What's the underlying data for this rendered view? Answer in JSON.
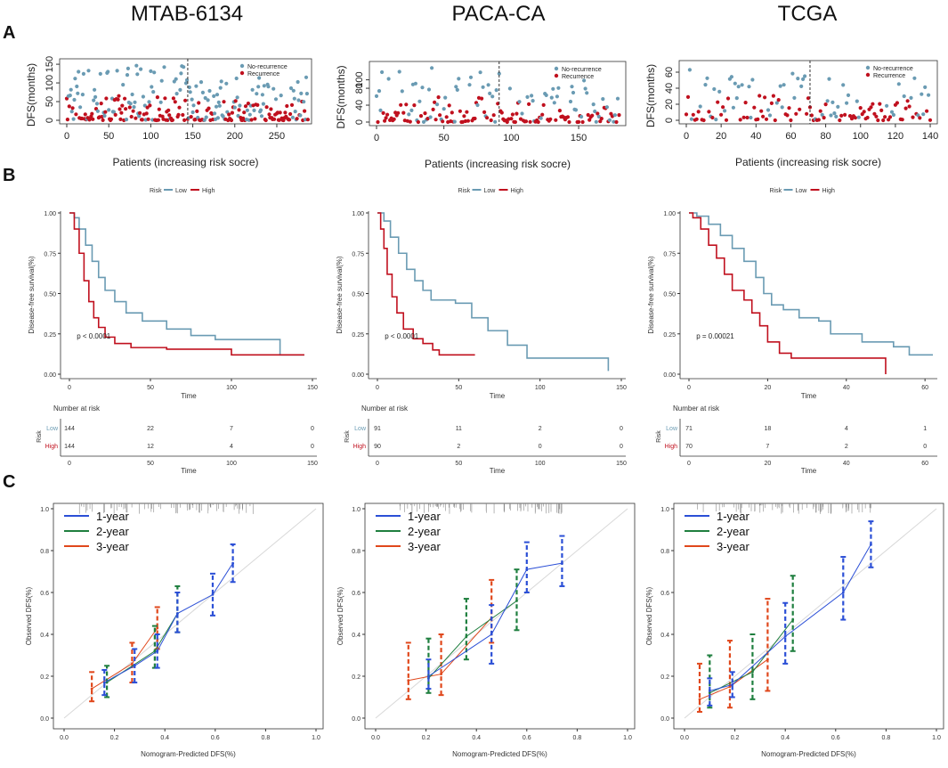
{
  "columns": [
    "MTAB-6134",
    "PACA-CA",
    "TCGA"
  ],
  "row_labels": [
    "A",
    "B",
    "C"
  ],
  "colors": {
    "low": "#6a9bb3",
    "high": "#c0101e",
    "y1": "#2b4fd6",
    "y2": "#1f7f3f",
    "y3": "#e0481c",
    "ideal": "#d8d8d8"
  },
  "chart_data": {
    "scatter": {
      "type": "scatter",
      "xlabel": "Patients (increasing risk socre)",
      "ylabel": "DFS(months)",
      "legend": [
        "No-recurrence",
        "Recurrence"
      ],
      "panels": [
        {
          "dataset": "MTAB-6134",
          "xlim": [
            0,
            285
          ],
          "ylim": [
            0,
            155
          ],
          "xticks": [
            0,
            50,
            100,
            150,
            200,
            250
          ],
          "yticks": [
            0,
            50,
            100,
            150
          ],
          "cutoff": 144,
          "n": 288
        },
        {
          "dataset": "PACA-CA",
          "xlim": [
            0,
            181
          ],
          "ylim": [
            0,
            135
          ],
          "xticks": [
            0,
            50,
            100,
            150
          ],
          "yticks": [
            0,
            40,
            80,
            100
          ],
          "cutoff": 91,
          "n": 181
        },
        {
          "dataset": "TCGA",
          "xlim": [
            0,
            141
          ],
          "ylim": [
            0,
            70
          ],
          "xticks": [
            0,
            20,
            40,
            60,
            80,
            100,
            120,
            140
          ],
          "yticks": [
            0,
            20,
            40,
            60
          ],
          "cutoff": 71,
          "n": 141
        }
      ]
    },
    "km": {
      "type": "line",
      "xlabel": "Time",
      "ylabel": "Disease-free survival(%)",
      "legend_title": "Risk",
      "legend": [
        "Low",
        "High"
      ],
      "yticks": [
        "0.00",
        "0.25",
        "0.50",
        "0.75",
        "1.00"
      ],
      "risk_table_title": "Number at risk",
      "risk_label": "Risk",
      "panels": [
        {
          "dataset": "MTAB-6134",
          "pvalue": "p < 0.0001",
          "xlim": [
            0,
            150
          ],
          "xticks": [
            0,
            50,
            100,
            150
          ],
          "low": [
            [
              0,
              1
            ],
            [
              3,
              0.97
            ],
            [
              6,
              0.9
            ],
            [
              10,
              0.8
            ],
            [
              14,
              0.7
            ],
            [
              18,
              0.6
            ],
            [
              22,
              0.52
            ],
            [
              28,
              0.45
            ],
            [
              35,
              0.38
            ],
            [
              45,
              0.33
            ],
            [
              60,
              0.28
            ],
            [
              75,
              0.24
            ],
            [
              90,
              0.215
            ],
            [
              130,
              0.215
            ],
            [
              130,
              0.12
            ],
            [
              145,
              0.12
            ]
          ],
          "high": [
            [
              0,
              1
            ],
            [
              3,
              0.9
            ],
            [
              6,
              0.75
            ],
            [
              9,
              0.58
            ],
            [
              12,
              0.45
            ],
            [
              15,
              0.35
            ],
            [
              18,
              0.29
            ],
            [
              22,
              0.23
            ],
            [
              28,
              0.19
            ],
            [
              38,
              0.165
            ],
            [
              60,
              0.155
            ],
            [
              100,
              0.12
            ],
            [
              145,
              0.12
            ]
          ],
          "risk_low": [
            "144",
            "22",
            "7",
            "0"
          ],
          "risk_high": [
            "144",
            "12",
            "4",
            "0"
          ]
        },
        {
          "dataset": "PACA-CA",
          "pvalue": "p < 0.0001",
          "xlim": [
            0,
            150
          ],
          "xticks": [
            0,
            50,
            100,
            150
          ],
          "low": [
            [
              0,
              1
            ],
            [
              4,
              0.95
            ],
            [
              8,
              0.85
            ],
            [
              13,
              0.75
            ],
            [
              18,
              0.65
            ],
            [
              23,
              0.58
            ],
            [
              28,
              0.52
            ],
            [
              33,
              0.46
            ],
            [
              48,
              0.44
            ],
            [
              58,
              0.35
            ],
            [
              68,
              0.27
            ],
            [
              80,
              0.18
            ],
            [
              92,
              0.1
            ],
            [
              138,
              0.1
            ],
            [
              142,
              0.02
            ]
          ],
          "high": [
            [
              0,
              1
            ],
            [
              2,
              0.9
            ],
            [
              4,
              0.78
            ],
            [
              6,
              0.62
            ],
            [
              9,
              0.48
            ],
            [
              12,
              0.38
            ],
            [
              16,
              0.28
            ],
            [
              22,
              0.22
            ],
            [
              28,
              0.19
            ],
            [
              34,
              0.15
            ],
            [
              38,
              0.12
            ],
            [
              60,
              0.12
            ]
          ],
          "risk_low": [
            "91",
            "11",
            "2",
            "0"
          ],
          "risk_high": [
            "90",
            "2",
            "0",
            "0"
          ]
        },
        {
          "dataset": "TCGA",
          "pvalue": "p = 0.00021",
          "xlim": [
            0,
            62
          ],
          "xticks": [
            0,
            20,
            40,
            60
          ],
          "low": [
            [
              0,
              1
            ],
            [
              2,
              0.98
            ],
            [
              5,
              0.93
            ],
            [
              8,
              0.86
            ],
            [
              11,
              0.78
            ],
            [
              14,
              0.7
            ],
            [
              17,
              0.6
            ],
            [
              19,
              0.5
            ],
            [
              21,
              0.43
            ],
            [
              24,
              0.4
            ],
            [
              28,
              0.35
            ],
            [
              33,
              0.33
            ],
            [
              36,
              0.25
            ],
            [
              44,
              0.2
            ],
            [
              52,
              0.17
            ],
            [
              56,
              0.12
            ],
            [
              62,
              0.12
            ]
          ],
          "high": [
            [
              0,
              1
            ],
            [
              1,
              0.97
            ],
            [
              3,
              0.9
            ],
            [
              5,
              0.8
            ],
            [
              7,
              0.72
            ],
            [
              9,
              0.62
            ],
            [
              11,
              0.52
            ],
            [
              14,
              0.46
            ],
            [
              16,
              0.38
            ],
            [
              18,
              0.3
            ],
            [
              20,
              0.2
            ],
            [
              23,
              0.13
            ],
            [
              26,
              0.1
            ],
            [
              50,
              0.1
            ],
            [
              50,
              0.0
            ]
          ],
          "risk_low": [
            "71",
            "18",
            "4",
            "1"
          ],
          "risk_high": [
            "70",
            "7",
            "2",
            "0"
          ]
        }
      ]
    },
    "calibration": {
      "type": "line",
      "xlabel": "Nomogram-Predicted DFS(%)",
      "ylabel": "Observed DFS(%)",
      "legend": [
        "1-year",
        "2-year",
        "3-year"
      ],
      "xlim": [
        0,
        1
      ],
      "ylim": [
        0,
        1
      ],
      "ticks": [
        "0.0",
        "0.2",
        "0.4",
        "0.6",
        "0.8",
        "1.0"
      ],
      "panels": [
        {
          "dataset": "MTAB-6134",
          "y1": [
            [
              0.16,
              0.17,
              0.11,
              0.23
            ],
            [
              0.28,
              0.25,
              0.17,
              0.33
            ],
            [
              0.37,
              0.32,
              0.24,
              0.4
            ],
            [
              0.45,
              0.5,
              0.41,
              0.6
            ],
            [
              0.59,
              0.59,
              0.49,
              0.69
            ],
            [
              0.67,
              0.74,
              0.65,
              0.83
            ]
          ],
          "y2": [
            [
              0.17,
              0.17,
              0.1,
              0.25
            ],
            [
              0.36,
              0.32,
              0.24,
              0.44
            ],
            [
              0.45,
              0.5,
              0.41,
              0.63
            ]
          ],
          "y3": [
            [
              0.11,
              0.14,
              0.08,
              0.22
            ],
            [
              0.27,
              0.26,
              0.17,
              0.36
            ],
            [
              0.37,
              0.43,
              0.33,
              0.53
            ]
          ]
        },
        {
          "dataset": "PACA-CA",
          "y1": [
            [
              0.21,
              0.2,
              0.14,
              0.28
            ],
            [
              0.46,
              0.4,
              0.26,
              0.54
            ],
            [
              0.6,
              0.71,
              0.6,
              0.84
            ],
            [
              0.74,
              0.74,
              0.63,
              0.87
            ]
          ],
          "y2": [
            [
              0.21,
              0.19,
              0.12,
              0.38
            ],
            [
              0.36,
              0.39,
              0.28,
              0.57
            ],
            [
              0.56,
              0.56,
              0.42,
              0.71
            ]
          ],
          "y3": [
            [
              0.13,
              0.18,
              0.09,
              0.36
            ],
            [
              0.26,
              0.21,
              0.11,
              0.4
            ],
            [
              0.46,
              0.48,
              0.36,
              0.66
            ]
          ]
        },
        {
          "dataset": "TCGA",
          "y1": [
            [
              0.1,
              0.13,
              0.06,
              0.19
            ],
            [
              0.19,
              0.16,
              0.1,
              0.22
            ],
            [
              0.4,
              0.39,
              0.26,
              0.55
            ],
            [
              0.63,
              0.6,
              0.47,
              0.77
            ],
            [
              0.74,
              0.83,
              0.72,
              0.94
            ]
          ],
          "y2": [
            [
              0.1,
              0.12,
              0.05,
              0.3
            ],
            [
              0.27,
              0.22,
              0.09,
              0.4
            ],
            [
              0.43,
              0.47,
              0.32,
              0.68
            ]
          ],
          "y3": [
            [
              0.06,
              0.09,
              0.03,
              0.26
            ],
            [
              0.18,
              0.15,
              0.05,
              0.37
            ],
            [
              0.33,
              0.28,
              0.13,
              0.57
            ]
          ]
        }
      ]
    }
  }
}
